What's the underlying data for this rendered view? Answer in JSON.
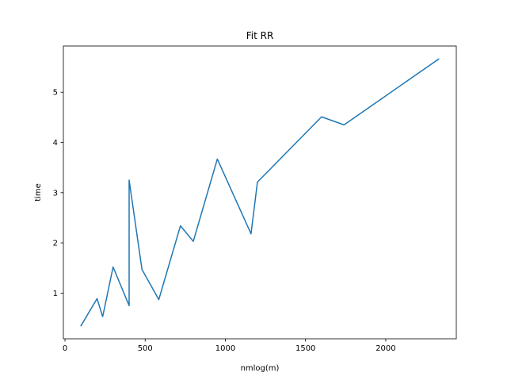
{
  "chart_data": {
    "type": "line",
    "title": "Fit RR",
    "xlabel": "nmlog(m)",
    "ylabel": "time",
    "xlim": [
      -10,
      2440
    ],
    "ylim": [
      0.09,
      5.92
    ],
    "xticks": [
      0,
      500,
      1000,
      1500,
      2000
    ],
    "yticks": [
      1,
      2,
      3,
      4,
      5
    ],
    "xtick_labels": [
      "0",
      "500",
      "1000",
      "1500",
      "2000"
    ],
    "ytick_labels": [
      "1",
      "2",
      "3",
      "4",
      "5"
    ],
    "grid": false,
    "legend": "none",
    "series": [
      {
        "color": "#1f77b4",
        "x": [
          100,
          200,
          235,
          300,
          400,
          400,
          480,
          585,
          720,
          800,
          950,
          1160,
          1200,
          1600,
          1740,
          2330
        ],
        "y": [
          0.35,
          0.89,
          0.53,
          1.52,
          0.75,
          3.25,
          1.47,
          0.87,
          2.34,
          2.03,
          3.67,
          2.18,
          3.21,
          4.51,
          4.35,
          5.66
        ]
      }
    ]
  }
}
